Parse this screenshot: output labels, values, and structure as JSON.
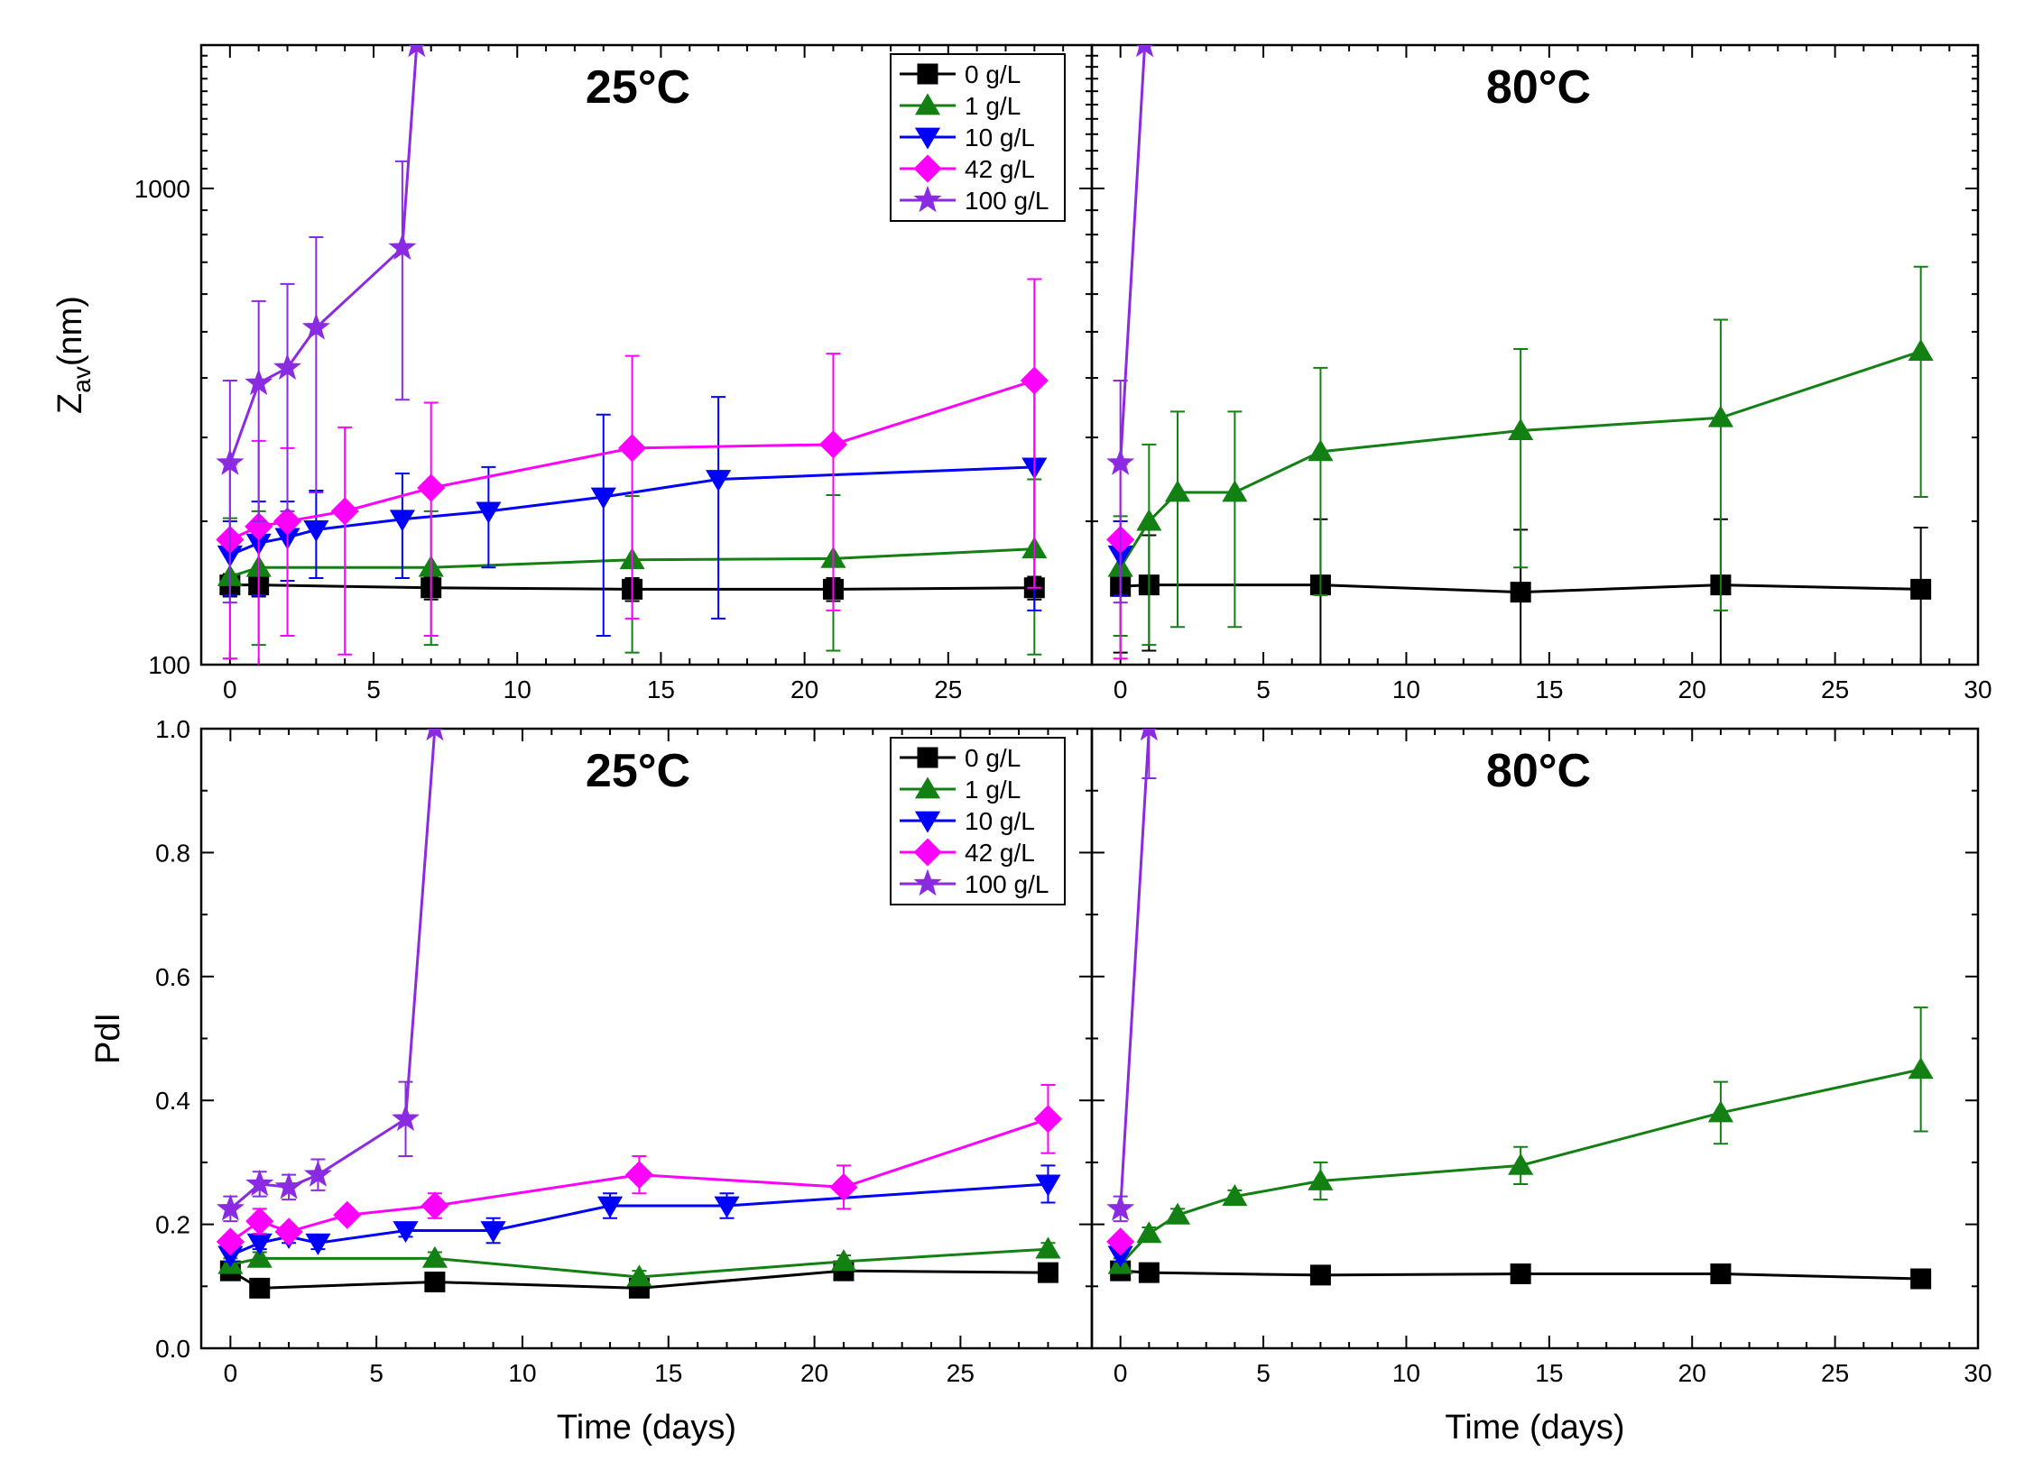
{
  "chart_data": [
    {
      "type": "line",
      "panel": "top-left",
      "temperature_label": "25°C",
      "ylabel": "Z",
      "ylabel_sub": "av",
      "ylabel_unit": "(nm)",
      "yscale": "log",
      "ylim": [
        100,
        2000
      ],
      "xlim": [
        -1,
        30
      ],
      "legend_title_entries": [
        "0 g/L",
        "1 g/L",
        "10 g/L",
        "42 g/L",
        "100 g/L"
      ],
      "series": [
        {
          "name": "0 g/L",
          "color": "#000000",
          "marker": "square",
          "x": [
            0,
            1,
            7,
            14,
            21,
            28
          ],
          "y": [
            147,
            147,
            145,
            144,
            144,
            145
          ],
          "err": [
            8,
            8,
            8,
            8,
            8,
            8
          ]
        },
        {
          "name": "1 g/L",
          "color": "#138013",
          "marker": "triangle-up",
          "x": [
            0,
            1,
            7,
            14,
            21,
            28
          ],
          "y": [
            153,
            160,
            160,
            166,
            167,
            175
          ],
          "err": [
            50,
            50,
            50,
            60,
            60,
            70
          ]
        },
        {
          "name": "10 g/L",
          "color": "#0000ff",
          "marker": "triangle-down",
          "x": [
            0,
            1,
            2,
            3,
            6,
            9,
            13,
            17,
            28
          ],
          "y": [
            170,
            180,
            185,
            192,
            202,
            210,
            225,
            245,
            260
          ],
          "err": [
            30,
            40,
            35,
            40,
            50,
            50,
            110,
            120,
            130
          ]
        },
        {
          "name": "42 g/L",
          "color": "#ff00ff",
          "marker": "diamond",
          "x": [
            0,
            1,
            2,
            4,
            7,
            14,
            21,
            28
          ],
          "y": [
            183,
            195,
            200,
            210,
            235,
            285,
            290,
            395
          ],
          "err": [
            80,
            100,
            85,
            105,
            120,
            160,
            160,
            250
          ]
        },
        {
          "name": "100 g/L",
          "color": "#8a2be2",
          "marker": "star",
          "x": [
            0,
            1,
            2,
            3,
            6,
            6.5
          ],
          "y": [
            265,
            390,
            420,
            510,
            750,
            2000
          ],
          "err": [
            130,
            190,
            210,
            280,
            390,
            0
          ]
        }
      ]
    },
    {
      "type": "line",
      "panel": "top-right",
      "temperature_label": "80°C",
      "yscale": "log",
      "ylim": [
        100,
        2000
      ],
      "xlim": [
        -1,
        30
      ],
      "xticks": [
        0,
        5,
        10,
        15,
        20,
        25,
        30
      ],
      "series": [
        {
          "name": "0 g/L",
          "color": "#000000",
          "marker": "square",
          "x": [
            0,
            1,
            7,
            14,
            21,
            28
          ],
          "y": [
            146,
            147,
            147,
            142,
            147,
            144
          ],
          "err": [
            40,
            40,
            55,
            50,
            55,
            50
          ]
        },
        {
          "name": "1 g/L",
          "color": "#138013",
          "marker": "triangle-up",
          "x": [
            0,
            1,
            2,
            4,
            7,
            14,
            21,
            28
          ],
          "y": [
            160,
            200,
            230,
            230,
            280,
            310,
            330,
            455
          ],
          "err": [
            45,
            90,
            110,
            110,
            140,
            150,
            200,
            230
          ]
        },
        {
          "name": "10 g/L",
          "color": "#0000ff",
          "marker": "triangle-down",
          "x": [
            0
          ],
          "y": [
            170
          ],
          "err": [
            30
          ]
        },
        {
          "name": "42 g/L",
          "color": "#ff00ff",
          "marker": "diamond",
          "x": [
            0
          ],
          "y": [
            183
          ],
          "err": [
            80
          ]
        },
        {
          "name": "100 g/L",
          "color": "#8a2be2",
          "marker": "star",
          "x": [
            0,
            0.85
          ],
          "y": [
            265,
            2000
          ],
          "err": [
            130,
            0
          ]
        }
      ]
    },
    {
      "type": "line",
      "panel": "bottom-left",
      "temperature_label": "25°C",
      "ylabel": "PdI",
      "xlabel": "Time (days)",
      "ylim": [
        0.0,
        1.0
      ],
      "yticks": [
        "0.0",
        "0.2",
        "0.4",
        "0.6",
        "0.8",
        "1.0"
      ],
      "xlim": [
        -1,
        29.5
      ],
      "xticks": [
        0,
        5,
        10,
        15,
        20,
        25
      ],
      "legend_title_entries": [
        "0 g/L",
        "1 g/L",
        "10 g/L",
        "42 g/L",
        "100 g/L"
      ],
      "series": [
        {
          "name": "0 g/L",
          "color": "#000000",
          "marker": "square",
          "x": [
            0,
            1,
            7,
            14,
            21,
            28
          ],
          "y": [
            0.125,
            0.097,
            0.107,
            0.097,
            0.125,
            0.122
          ],
          "err": [
            0.01,
            0.01,
            0.01,
            0.01,
            0.01,
            0.01
          ]
        },
        {
          "name": "1 g/L",
          "color": "#138013",
          "marker": "triangle-up",
          "x": [
            0,
            1,
            7,
            14,
            21,
            28
          ],
          "y": [
            0.135,
            0.145,
            0.145,
            0.115,
            0.14,
            0.16
          ],
          "err": [
            0.01,
            0.01,
            0.01,
            0.01,
            0.01,
            0.01
          ]
        },
        {
          "name": "10 g/L",
          "color": "#0000ff",
          "marker": "triangle-down",
          "x": [
            0,
            1,
            2,
            3,
            6,
            9,
            13,
            17,
            28
          ],
          "y": [
            0.15,
            0.17,
            0.18,
            0.17,
            0.19,
            0.19,
            0.23,
            0.23,
            0.265
          ],
          "err": [
            0.01,
            0.01,
            0.01,
            0.01,
            0.01,
            0.02,
            0.02,
            0.02,
            0.03
          ]
        },
        {
          "name": "42 g/L",
          "color": "#ff00ff",
          "marker": "diamond",
          "x": [
            0,
            1,
            2,
            4,
            7,
            14,
            21,
            28
          ],
          "y": [
            0.172,
            0.205,
            0.188,
            0.215,
            0.23,
            0.28,
            0.26,
            0.37
          ],
          "err": [
            0.01,
            0.02,
            0.01,
            0.01,
            0.02,
            0.03,
            0.035,
            0.055
          ]
        },
        {
          "name": "100 g/L",
          "color": "#8a2be2",
          "marker": "star",
          "x": [
            0,
            1,
            2,
            3,
            6,
            7
          ],
          "y": [
            0.225,
            0.265,
            0.26,
            0.28,
            0.37,
            1.0
          ],
          "err": [
            0.02,
            0.02,
            0.02,
            0.025,
            0.06,
            0
          ]
        }
      ]
    },
    {
      "type": "line",
      "panel": "bottom-right",
      "temperature_label": "80°C",
      "xlabel": "Time (days)",
      "ylim": [
        0.0,
        1.0
      ],
      "xlim": [
        -1,
        30
      ],
      "xticks": [
        0,
        5,
        10,
        15,
        20,
        25,
        30
      ],
      "series": [
        {
          "name": "0 g/L",
          "color": "#000000",
          "marker": "square",
          "x": [
            0,
            1,
            7,
            14,
            21,
            28
          ],
          "y": [
            0.125,
            0.122,
            0.118,
            0.12,
            0.12,
            0.112
          ],
          "err": [
            0.005,
            0.005,
            0.005,
            0.005,
            0.005,
            0.005
          ]
        },
        {
          "name": "1 g/L",
          "color": "#138013",
          "marker": "triangle-up",
          "x": [
            0,
            1,
            2,
            4,
            7,
            14,
            21,
            28
          ],
          "y": [
            0.135,
            0.185,
            0.215,
            0.245,
            0.27,
            0.295,
            0.38,
            0.45
          ],
          "err": [
            0.01,
            0.01,
            0.01,
            0.01,
            0.03,
            0.03,
            0.05,
            0.1
          ]
        },
        {
          "name": "10 g/L",
          "color": "#0000ff",
          "marker": "triangle-down",
          "x": [
            0
          ],
          "y": [
            0.15
          ],
          "err": [
            0.01
          ]
        },
        {
          "name": "42 g/L",
          "color": "#ff00ff",
          "marker": "diamond",
          "x": [
            0
          ],
          "y": [
            0.172
          ],
          "err": [
            0.01
          ]
        },
        {
          "name": "100 g/L",
          "color": "#8a2be2",
          "marker": "star",
          "x": [
            0,
            1
          ],
          "y": [
            0.225,
            1.0
          ],
          "err": [
            0.02,
            0.08
          ]
        }
      ]
    }
  ]
}
